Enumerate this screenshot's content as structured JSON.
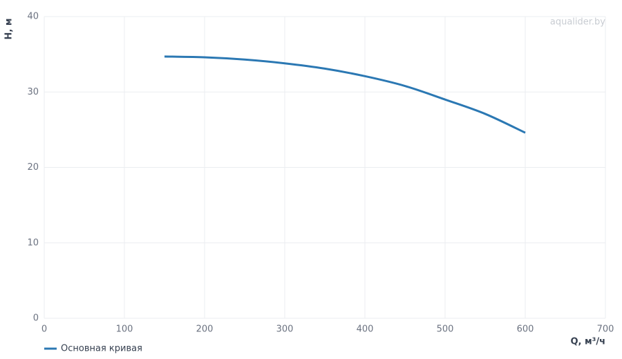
{
  "chart_data": {
    "type": "line",
    "watermark": "aqualider.by",
    "x_label": "Q, м³/ч",
    "y_label": "H, м",
    "x": [
      150,
      200,
      250,
      300,
      350,
      400,
      450,
      500,
      550,
      600
    ],
    "series": [
      {
        "name": "Основная кривая",
        "color": "#2b78b3",
        "values": [
          34.7,
          34.6,
          34.3,
          33.8,
          33.1,
          32.1,
          30.8,
          29.0,
          27.1,
          24.6
        ]
      }
    ],
    "xlim": [
      0,
      700
    ],
    "xticks": [
      0,
      100,
      200,
      300,
      400,
      500,
      600,
      700
    ],
    "ylim": [
      0,
      40
    ],
    "yticks": [
      0,
      10,
      20,
      30,
      40
    ],
    "grid": true,
    "legend": "bottom-left"
  }
}
